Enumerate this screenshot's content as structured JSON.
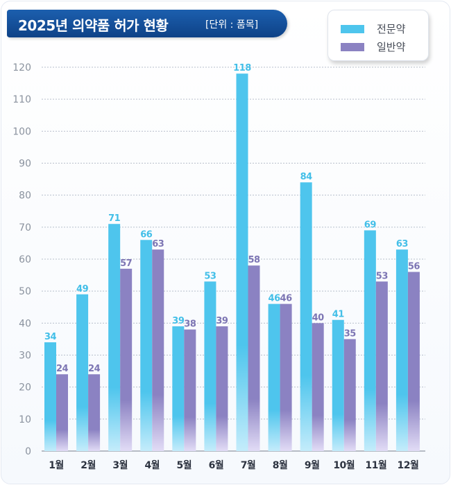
{
  "title": {
    "main": "2025년 의약품 허가 현황",
    "unit": "[단위 : 품목]"
  },
  "legend": [
    {
      "label": "전문약",
      "color": "#4ec5ed"
    },
    {
      "label": "일반약",
      "color": "#8b82c2"
    }
  ],
  "chart_data": {
    "type": "bar",
    "title": "2025년 의약품 허가 현황",
    "unit": "[단위 : 품목]",
    "xlabel": "",
    "ylabel": "",
    "ylim": [
      0,
      120
    ],
    "yticks": [
      "0",
      "10",
      "20",
      "30",
      "40",
      "50",
      "60",
      "70",
      "80",
      "90",
      "100",
      "110",
      "120"
    ],
    "categories": [
      "1월",
      "2월",
      "3월",
      "4월",
      "5월",
      "6월",
      "7월",
      "8월",
      "9월",
      "10월",
      "11월",
      "12월"
    ],
    "series": [
      {
        "name": "전문약",
        "color": "#4ec5ed",
        "label_color": "#43bfe8",
        "values": [
          34,
          49,
          71,
          66,
          39,
          53,
          118,
          46,
          84,
          41,
          69,
          63
        ]
      },
      {
        "name": "일반약",
        "color": "#8b82c2",
        "label_color": "#7d76b4",
        "values": [
          24,
          24,
          57,
          63,
          38,
          39,
          58,
          46,
          40,
          35,
          53,
          56
        ]
      }
    ],
    "grid": true,
    "legend_position": "top-right"
  }
}
